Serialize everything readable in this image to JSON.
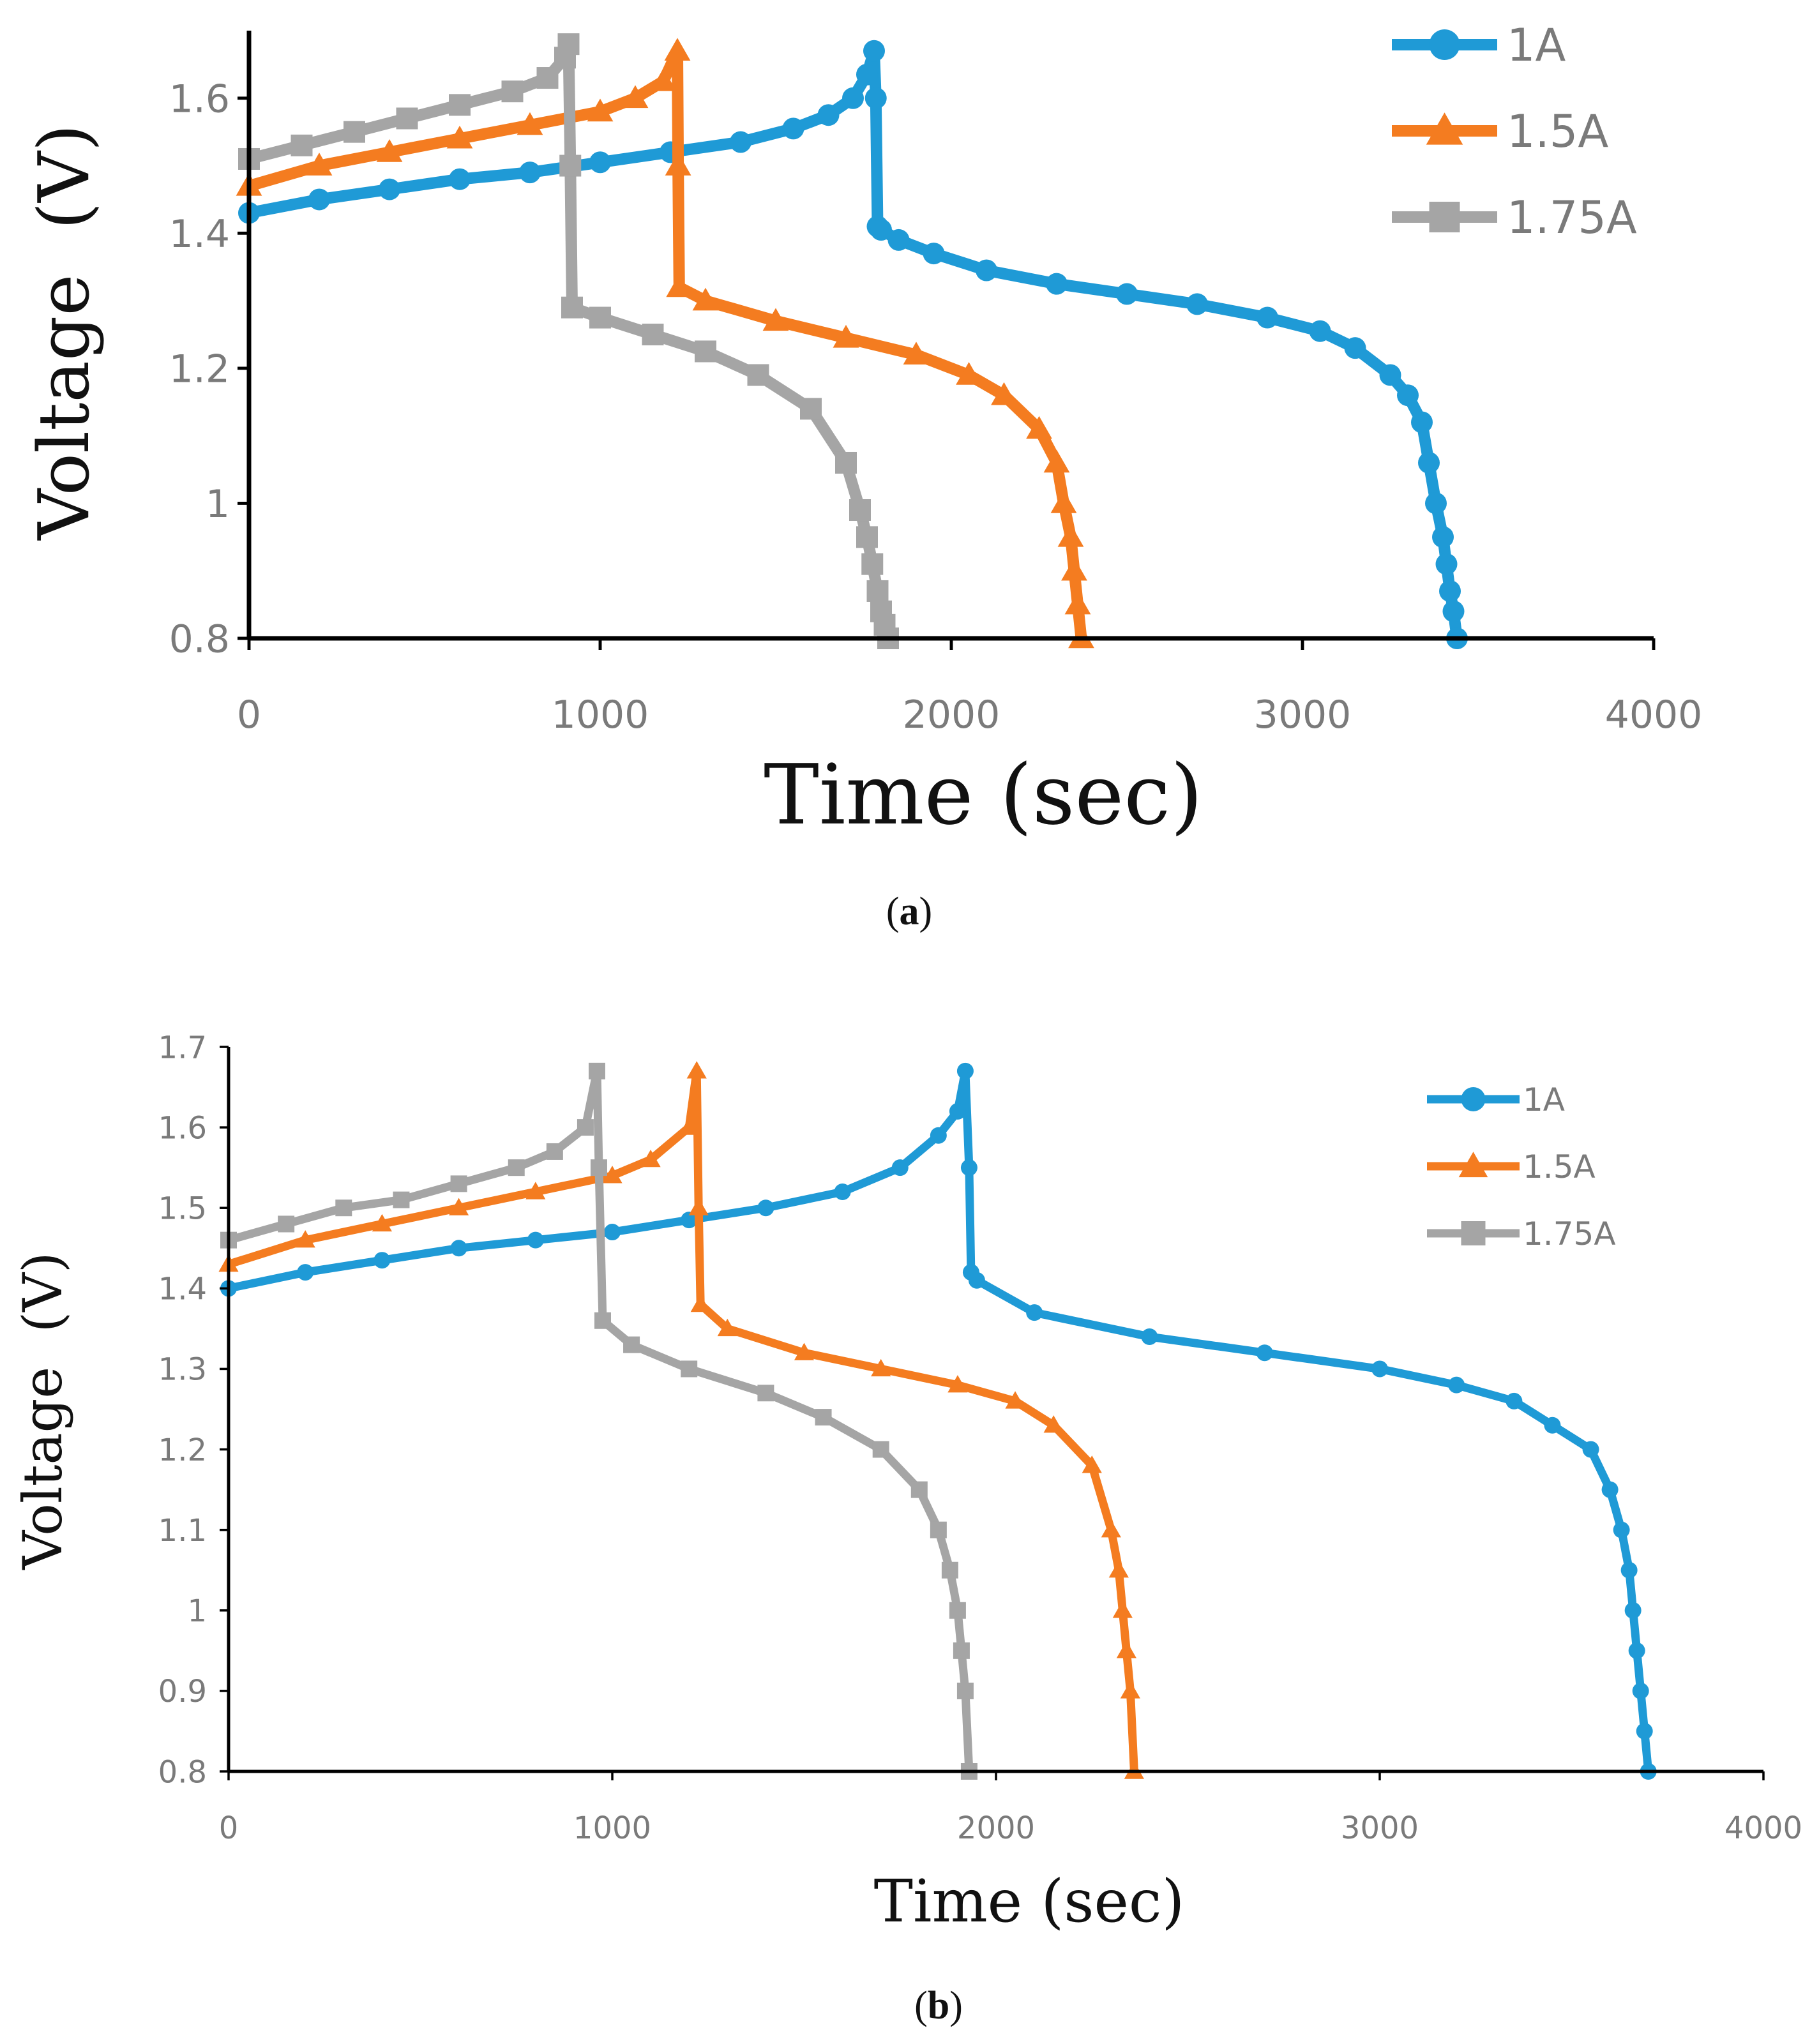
{
  "chart_data": [
    {
      "type": "line",
      "panel_label": "(a)",
      "panel_letter": "a",
      "xlabel": "Time (sec)",
      "ylabel": "Voltage  (V)",
      "xlim": [
        0,
        4000
      ],
      "ylim": [
        0.8,
        1.7
      ],
      "xticks": [
        0,
        1000,
        2000,
        3000,
        4000
      ],
      "xtick_labels": [
        "0",
        "1000",
        "2000",
        "3000",
        "4000"
      ],
      "yticks": [
        0.8,
        1.0,
        1.2,
        1.4,
        1.6
      ],
      "ytick_labels": [
        "0.8",
        "1",
        "1.2",
        "1.4",
        "1.6"
      ],
      "grid": false,
      "legend_position": "top-right",
      "series": [
        {
          "name": "1A",
          "color": "#1f9ad6",
          "marker": "circle",
          "x": [
            0,
            200,
            400,
            600,
            800,
            1000,
            1200,
            1400,
            1550,
            1650,
            1720,
            1760,
            1780,
            1785,
            1790,
            1800,
            1850,
            1950,
            2100,
            2300,
            2500,
            2700,
            2900,
            3050,
            3150,
            3250,
            3300,
            3340,
            3360,
            3380,
            3400,
            3410,
            3420,
            3430,
            3440
          ],
          "y": [
            1.43,
            1.45,
            1.465,
            1.48,
            1.49,
            1.505,
            1.52,
            1.535,
            1.555,
            1.575,
            1.6,
            1.635,
            1.67,
            1.6,
            1.41,
            1.405,
            1.39,
            1.37,
            1.345,
            1.325,
            1.31,
            1.295,
            1.275,
            1.255,
            1.23,
            1.19,
            1.16,
            1.12,
            1.06,
            1.0,
            0.95,
            0.91,
            0.87,
            0.84,
            0.8
          ]
        },
        {
          "name": "1.5A",
          "color": "#f47c20",
          "marker": "triangle",
          "x": [
            0,
            200,
            400,
            600,
            800,
            1000,
            1100,
            1180,
            1220,
            1222,
            1225,
            1300,
            1500,
            1700,
            1900,
            2050,
            2150,
            2250,
            2300,
            2320,
            2340,
            2350,
            2360,
            2370
          ],
          "y": [
            1.47,
            1.5,
            1.52,
            1.54,
            1.56,
            1.58,
            1.6,
            1.625,
            1.67,
            1.5,
            1.32,
            1.3,
            1.27,
            1.245,
            1.22,
            1.19,
            1.16,
            1.11,
            1.06,
            1.0,
            0.95,
            0.9,
            0.85,
            0.8
          ]
        },
        {
          "name": "1.75A",
          "color": "#a5a5a5",
          "marker": "square",
          "x": [
            0,
            150,
            300,
            450,
            600,
            750,
            850,
            900,
            910,
            915,
            920,
            1000,
            1150,
            1300,
            1450,
            1600,
            1700,
            1740,
            1760,
            1775,
            1790,
            1800,
            1810,
            1820
          ],
          "y": [
            1.51,
            1.53,
            1.55,
            1.57,
            1.59,
            1.61,
            1.63,
            1.66,
            1.68,
            1.5,
            1.29,
            1.275,
            1.25,
            1.225,
            1.19,
            1.14,
            1.06,
            0.99,
            0.95,
            0.91,
            0.87,
            0.84,
            0.82,
            0.8
          ]
        }
      ]
    },
    {
      "type": "line",
      "panel_label": "(b)",
      "panel_letter": "b",
      "xlabel": "Time (sec)",
      "ylabel": "Voltage  (V)",
      "xlim": [
        0,
        4000
      ],
      "ylim": [
        0.8,
        1.7
      ],
      "xticks": [
        0,
        1000,
        2000,
        3000,
        4000
      ],
      "xtick_labels": [
        "0",
        "1000",
        "2000",
        "3000",
        "4000"
      ],
      "yticks": [
        0.8,
        0.9,
        1.0,
        1.1,
        1.2,
        1.3,
        1.4,
        1.5,
        1.6,
        1.7
      ],
      "ytick_labels": [
        "0.8",
        "0.9",
        "1",
        "1.1",
        "1.2",
        "1.3",
        "1.4",
        "1.5",
        "1.6",
        "1.7"
      ],
      "grid": false,
      "legend_position": "top-right",
      "series": [
        {
          "name": "1A",
          "color": "#1f9ad6",
          "marker": "circle",
          "x": [
            0,
            200,
            400,
            600,
            800,
            1000,
            1200,
            1400,
            1600,
            1750,
            1850,
            1900,
            1920,
            1930,
            1935,
            1950,
            2100,
            2400,
            2700,
            3000,
            3200,
            3350,
            3450,
            3550,
            3600,
            3630,
            3650,
            3660,
            3670,
            3680,
            3690,
            3700
          ],
          "y": [
            1.4,
            1.42,
            1.435,
            1.45,
            1.46,
            1.47,
            1.485,
            1.5,
            1.52,
            1.55,
            1.59,
            1.62,
            1.67,
            1.55,
            1.42,
            1.41,
            1.37,
            1.34,
            1.32,
            1.3,
            1.28,
            1.26,
            1.23,
            1.2,
            1.15,
            1.1,
            1.05,
            1.0,
            0.95,
            0.9,
            0.85,
            0.8
          ]
        },
        {
          "name": "1.5A",
          "color": "#f47c20",
          "marker": "triangle",
          "x": [
            0,
            200,
            400,
            600,
            800,
            1000,
            1100,
            1200,
            1220,
            1225,
            1230,
            1300,
            1500,
            1700,
            1900,
            2050,
            2150,
            2250,
            2300,
            2320,
            2330,
            2340,
            2350,
            2360
          ],
          "y": [
            1.43,
            1.46,
            1.48,
            1.5,
            1.52,
            1.54,
            1.56,
            1.6,
            1.67,
            1.5,
            1.38,
            1.35,
            1.32,
            1.3,
            1.28,
            1.26,
            1.23,
            1.18,
            1.1,
            1.05,
            1.0,
            0.95,
            0.9,
            0.8
          ]
        },
        {
          "name": "1.75A",
          "color": "#a5a5a5",
          "marker": "square",
          "x": [
            0,
            150,
            300,
            450,
            600,
            750,
            850,
            930,
            960,
            965,
            975,
            1050,
            1200,
            1400,
            1550,
            1700,
            1800,
            1850,
            1880,
            1900,
            1910,
            1920,
            1930
          ],
          "y": [
            1.46,
            1.48,
            1.5,
            1.51,
            1.53,
            1.55,
            1.57,
            1.6,
            1.67,
            1.55,
            1.36,
            1.33,
            1.3,
            1.27,
            1.24,
            1.2,
            1.15,
            1.1,
            1.05,
            1.0,
            0.95,
            0.9,
            0.8
          ]
        }
      ]
    }
  ]
}
